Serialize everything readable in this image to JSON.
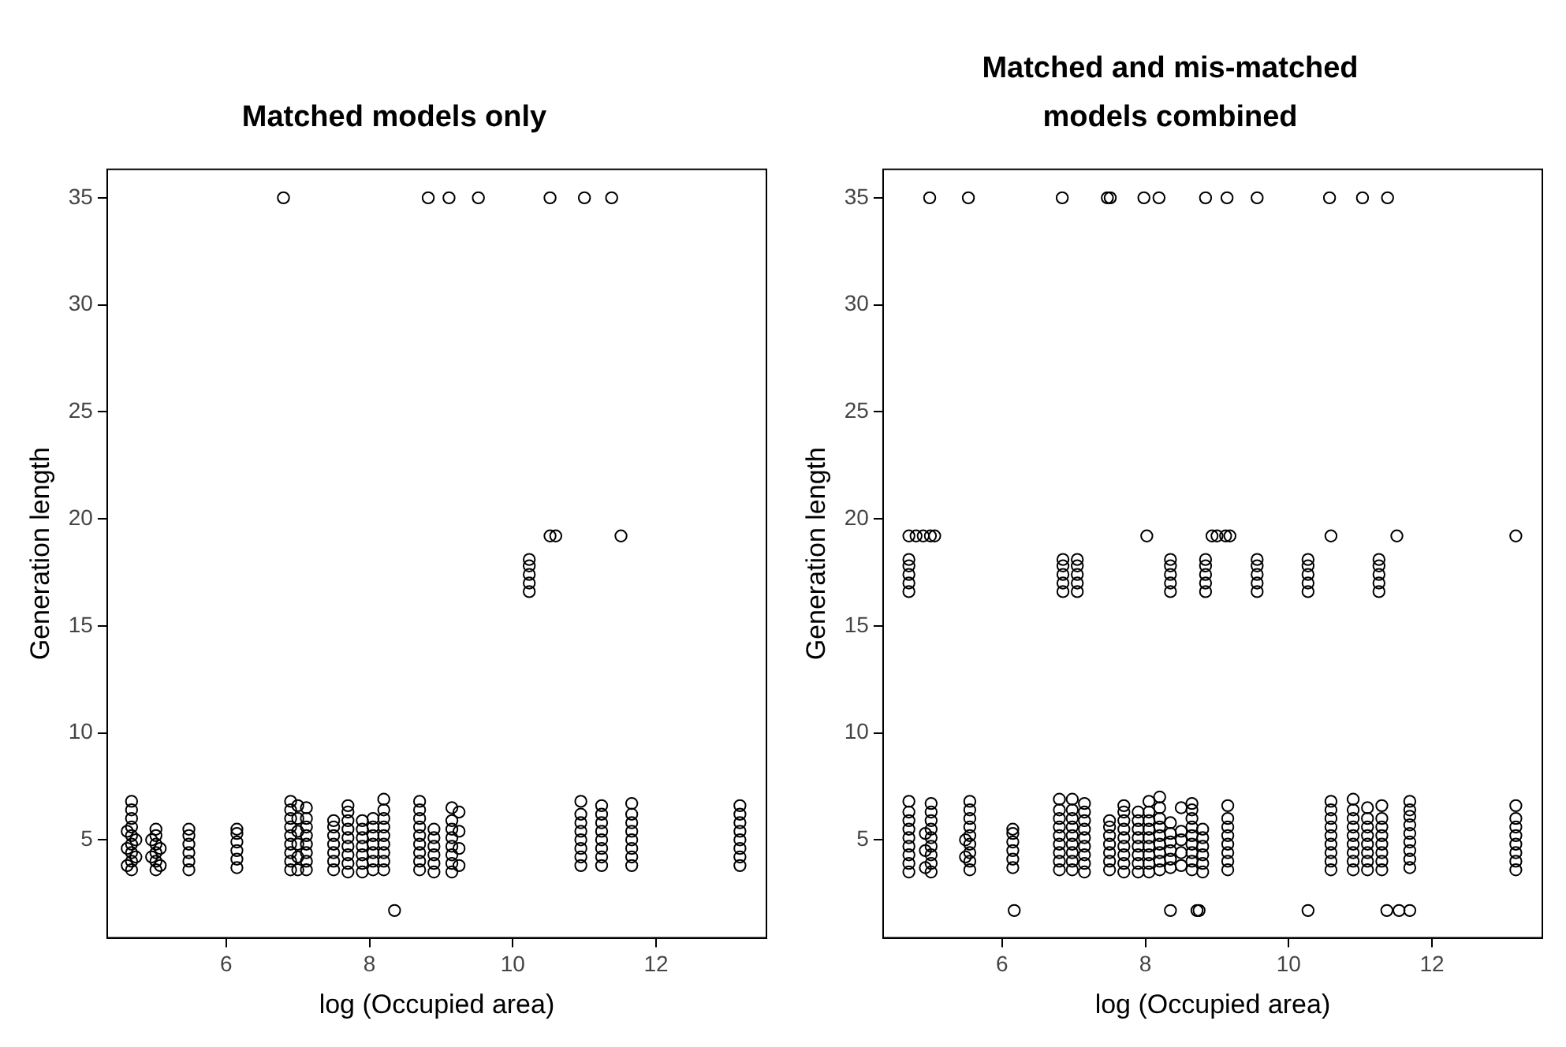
{
  "chart_data": [
    {
      "type": "scatter",
      "title": "Matched models only",
      "xlabel": "log (Occupied area)",
      "ylabel": "Generation length",
      "xlim": [
        4.34,
        13.54
      ],
      "ylim": [
        0.42,
        36.33
      ],
      "xticks": [
        6,
        8,
        10,
        12
      ],
      "yticks": [
        5,
        10,
        15,
        20,
        25,
        30,
        35
      ],
      "marker": "circle",
      "series": [
        {
          "color": "#000000",
          "x": [
            4.68,
            4.68,
            4.68,
            4.68,
            4.68,
            4.68,
            4.68,
            4.68,
            4.68,
            4.62,
            4.62,
            4.62,
            4.74,
            4.74
          ],
          "values": [
            3.6,
            4.0,
            4.4,
            4.8,
            5.2,
            5.6,
            6.0,
            6.4,
            6.8,
            3.8,
            4.6,
            5.4,
            4.2,
            5.0
          ]
        },
        {
          "color": "#000000",
          "x": [
            5.02,
            5.02,
            5.02,
            5.02,
            5.02,
            5.02,
            4.96,
            4.96,
            5.08,
            5.08
          ],
          "values": [
            3.6,
            4.0,
            4.4,
            4.8,
            5.2,
            5.5,
            4.2,
            5.0,
            3.8,
            4.6
          ]
        },
        {
          "color": "#000000",
          "x": [
            5.48,
            5.48,
            5.48,
            5.48,
            5.48,
            5.48,
            6.15,
            6.15,
            6.15,
            6.15,
            6.15,
            6.15
          ],
          "values": [
            3.6,
            4.0,
            4.4,
            4.8,
            5.2,
            5.5,
            3.7,
            4.1,
            4.5,
            4.9,
            5.3,
            5.5
          ]
        },
        {
          "color": "#000000",
          "x": [
            6.9,
            6.9,
            6.9,
            6.9,
            6.9,
            6.9,
            6.9,
            6.9,
            6.9,
            7.0,
            7.0,
            7.0,
            7.0,
            7.0,
            7.0,
            7.12,
            7.12,
            7.12,
            7.12,
            7.12,
            7.12,
            7.12,
            7.12
          ],
          "values": [
            3.6,
            4.0,
            4.4,
            4.8,
            5.2,
            5.6,
            6.0,
            6.4,
            6.8,
            3.6,
            4.2,
            4.8,
            5.4,
            6.0,
            6.6,
            3.6,
            4.0,
            4.4,
            4.8,
            5.2,
            5.6,
            6.0,
            6.5
          ]
        },
        {
          "color": "#000000",
          "x": [
            7.5,
            7.5,
            7.5,
            7.5,
            7.5,
            7.5,
            7.5,
            7.7,
            7.7,
            7.7,
            7.7,
            7.7,
            7.7,
            7.7,
            7.7,
            7.7,
            7.9,
            7.9,
            7.9,
            7.9,
            7.9,
            7.9,
            7.9
          ],
          "values": [
            3.6,
            4.0,
            4.4,
            4.8,
            5.2,
            5.6,
            5.9,
            3.5,
            3.9,
            4.3,
            4.7,
            5.1,
            5.5,
            5.9,
            6.3,
            6.6,
            3.5,
            3.9,
            4.3,
            4.7,
            5.1,
            5.5,
            5.9
          ]
        },
        {
          "color": "#000000",
          "x": [
            8.05,
            8.05,
            8.05,
            8.05,
            8.05,
            8.05,
            8.05,
            8.2,
            8.2,
            8.2,
            8.2,
            8.2,
            8.2,
            8.2,
            8.2,
            8.2
          ],
          "values": [
            3.6,
            4.0,
            4.4,
            4.8,
            5.2,
            5.6,
            6.0,
            3.6,
            4.0,
            4.4,
            4.8,
            5.2,
            5.6,
            6.0,
            6.4,
            6.9
          ]
        },
        {
          "color": "#000000",
          "x": [
            8.7,
            8.7,
            8.7,
            8.7,
            8.7,
            8.7,
            8.7,
            8.7,
            8.7,
            8.9,
            8.9,
            8.9,
            8.9,
            8.9,
            8.9
          ],
          "values": [
            3.6,
            4.0,
            4.4,
            4.8,
            5.2,
            5.6,
            6.0,
            6.4,
            6.8,
            3.5,
            3.9,
            4.3,
            4.7,
            5.1,
            5.5
          ]
        },
        {
          "color": "#000000",
          "x": [
            9.15,
            9.15,
            9.15,
            9.15,
            9.15,
            9.15,
            9.15,
            9.15,
            9.25,
            9.25,
            9.25,
            9.25
          ],
          "values": [
            3.5,
            3.9,
            4.3,
            4.7,
            5.1,
            5.5,
            5.9,
            6.5,
            3.8,
            4.6,
            5.4,
            6.3
          ]
        },
        {
          "color": "#000000",
          "x": [
            10.95,
            10.95,
            10.95,
            10.95,
            10.95,
            10.95,
            10.95,
            10.95,
            11.24,
            11.24,
            11.24,
            11.24,
            11.24,
            11.24,
            11.24,
            11.24
          ],
          "values": [
            3.8,
            4.2,
            4.6,
            5.0,
            5.4,
            5.8,
            6.2,
            6.8,
            3.8,
            4.2,
            4.6,
            5.0,
            5.4,
            5.8,
            6.2,
            6.6
          ]
        },
        {
          "color": "#000000",
          "x": [
            11.66,
            11.66,
            11.66,
            11.66,
            11.66,
            11.66,
            11.66,
            11.66,
            13.17,
            13.17,
            13.17,
            13.17,
            13.17,
            13.17,
            13.17,
            13.17
          ],
          "values": [
            3.8,
            4.2,
            4.6,
            5.0,
            5.4,
            5.8,
            6.2,
            6.7,
            3.8,
            4.2,
            4.6,
            5.0,
            5.4,
            5.8,
            6.2,
            6.6
          ]
        },
        {
          "color": "#000000",
          "x": [
            10.23,
            10.23,
            10.23,
            10.23,
            10.23,
            10.52,
            10.6,
            11.51,
            8.35
          ],
          "values": [
            16.6,
            17.0,
            17.4,
            17.8,
            18.1,
            19.2,
            19.2,
            19.2,
            1.7
          ]
        },
        {
          "color": "#000000",
          "x": [
            6.8,
            8.82,
            9.11,
            9.52,
            10.52,
            11.0,
            11.38
          ],
          "values": [
            35,
            35,
            35,
            35,
            35,
            35,
            35
          ]
        }
      ]
    },
    {
      "type": "scatter",
      "title": "Matched and mis-matched models combined",
      "xlabel": "log (Occupied area)",
      "ylabel": "Generation length",
      "xlim": [
        4.34,
        13.54
      ],
      "ylim": [
        0.42,
        36.33
      ],
      "xticks": [
        6,
        8,
        10,
        12
      ],
      "yticks": [
        5,
        10,
        15,
        20,
        25,
        30,
        35
      ],
      "marker": "circle",
      "series": [
        {
          "color": "#000000",
          "x": [
            4.7,
            4.7,
            4.7,
            4.7,
            4.7,
            4.7,
            4.7,
            4.7,
            4.7,
            5.01,
            5.01,
            5.01,
            5.01,
            5.01,
            5.01,
            5.01,
            5.01,
            5.01,
            4.93,
            4.93,
            4.93
          ],
          "values": [
            3.5,
            3.9,
            4.3,
            4.7,
            5.1,
            5.5,
            5.9,
            6.3,
            6.8,
            3.5,
            3.9,
            4.3,
            4.7,
            5.1,
            5.5,
            5.9,
            6.3,
            6.7,
            3.7,
            4.5,
            5.3
          ]
        },
        {
          "color": "#000000",
          "x": [
            5.55,
            5.55,
            5.55,
            5.55,
            5.55,
            5.55,
            5.55,
            5.55,
            5.55,
            5.49,
            5.49,
            6.15,
            6.15,
            6.15,
            6.15,
            6.15,
            6.15
          ],
          "values": [
            3.6,
            4.0,
            4.4,
            4.8,
            5.2,
            5.6,
            6.0,
            6.4,
            6.8,
            4.2,
            5.0,
            3.7,
            4.1,
            4.5,
            4.9,
            5.3,
            5.5
          ]
        },
        {
          "color": "#000000",
          "x": [
            6.8,
            6.8,
            6.8,
            6.8,
            6.8,
            6.8,
            6.8,
            6.8,
            6.8,
            6.98,
            6.98,
            6.98,
            6.98,
            6.98,
            6.98,
            6.98,
            6.98,
            6.98,
            7.15,
            7.15,
            7.15,
            7.15,
            7.15,
            7.15,
            7.15,
            7.15,
            7.15
          ],
          "values": [
            3.6,
            4.0,
            4.4,
            4.8,
            5.2,
            5.6,
            6.0,
            6.4,
            6.9,
            3.6,
            4.0,
            4.4,
            4.8,
            5.2,
            5.6,
            6.0,
            6.4,
            6.9,
            3.5,
            3.9,
            4.3,
            4.7,
            5.1,
            5.5,
            5.9,
            6.3,
            6.7
          ]
        },
        {
          "color": "#000000",
          "x": [
            7.5,
            7.5,
            7.5,
            7.5,
            7.5,
            7.5,
            7.5,
            7.7,
            7.7,
            7.7,
            7.7,
            7.7,
            7.7,
            7.7,
            7.7,
            7.7,
            7.9,
            7.9,
            7.9,
            7.9,
            7.9,
            7.9,
            7.9,
            7.9
          ],
          "values": [
            3.6,
            4.0,
            4.4,
            4.8,
            5.2,
            5.6,
            5.9,
            3.5,
            3.9,
            4.3,
            4.7,
            5.1,
            5.5,
            5.9,
            6.3,
            6.6,
            3.5,
            3.9,
            4.3,
            4.7,
            5.1,
            5.5,
            5.9,
            6.3
          ]
        },
        {
          "color": "#000000",
          "x": [
            8.05,
            8.05,
            8.05,
            8.05,
            8.05,
            8.05,
            8.05,
            8.05,
            8.05,
            8.2,
            8.2,
            8.2,
            8.2,
            8.2,
            8.2,
            8.2,
            8.2,
            8.2
          ],
          "values": [
            3.5,
            3.9,
            4.3,
            4.7,
            5.1,
            5.5,
            5.9,
            6.3,
            6.8,
            3.6,
            4.0,
            4.4,
            4.8,
            5.2,
            5.6,
            6.0,
            6.5,
            7.0
          ]
        },
        {
          "color": "#000000",
          "x": [
            8.35,
            8.35,
            8.35,
            8.35,
            8.35,
            8.35,
            8.5,
            8.5,
            8.5,
            8.5,
            8.5,
            8.65,
            8.65,
            8.65,
            8.65,
            8.65,
            8.65,
            8.65,
            8.65,
            8.65
          ],
          "values": [
            3.7,
            4.1,
            4.5,
            4.9,
            5.3,
            5.8,
            3.8,
            4.4,
            5.0,
            5.4,
            6.5,
            3.6,
            4.0,
            4.4,
            4.8,
            5.2,
            5.6,
            6.0,
            6.4,
            6.7
          ]
        },
        {
          "color": "#000000",
          "x": [
            8.8,
            8.8,
            8.8,
            8.8,
            8.8,
            8.8,
            9.15,
            9.15,
            9.15,
            9.15,
            9.15,
            9.15,
            9.15,
            9.15
          ],
          "values": [
            3.5,
            3.9,
            4.3,
            4.7,
            5.1,
            5.5,
            3.6,
            4.0,
            4.4,
            4.8,
            5.2,
            5.6,
            6.0,
            6.6
          ]
        },
        {
          "color": "#000000",
          "x": [
            10.59,
            10.59,
            10.59,
            10.59,
            10.59,
            10.59,
            10.59,
            10.59,
            10.59,
            10.9,
            10.9,
            10.9,
            10.9,
            10.9,
            10.9,
            10.9,
            10.9,
            10.9
          ],
          "values": [
            3.6,
            4.0,
            4.4,
            4.8,
            5.2,
            5.6,
            6.0,
            6.4,
            6.8,
            3.6,
            4.0,
            4.4,
            4.8,
            5.2,
            5.6,
            6.0,
            6.4,
            6.9
          ]
        },
        {
          "color": "#000000",
          "x": [
            11.1,
            11.1,
            11.1,
            11.1,
            11.1,
            11.1,
            11.1,
            11.1,
            11.3,
            11.3,
            11.3,
            11.3,
            11.3,
            11.3,
            11.3,
            11.3
          ],
          "values": [
            3.6,
            4.0,
            4.4,
            4.8,
            5.2,
            5.6,
            6.0,
            6.5,
            3.6,
            4.0,
            4.4,
            4.8,
            5.2,
            5.6,
            6.0,
            6.6
          ]
        },
        {
          "color": "#000000",
          "x": [
            11.69,
            11.69,
            11.69,
            11.69,
            11.69,
            11.69,
            11.69,
            11.69,
            11.69,
            13.17,
            13.17,
            13.17,
            13.17,
            13.17,
            13.17,
            13.17,
            13.17
          ],
          "values": [
            3.7,
            4.1,
            4.5,
            4.9,
            5.3,
            5.7,
            6.1,
            6.4,
            6.8,
            3.6,
            4.0,
            4.4,
            4.8,
            5.2,
            5.6,
            6.0,
            6.6
          ]
        },
        {
          "color": "#000000",
          "x": [
            4.7,
            4.7,
            4.7,
            4.7,
            4.7,
            6.85,
            6.85,
            6.85,
            6.85,
            6.85,
            7.05,
            7.05,
            7.05,
            7.05,
            7.05,
            8.35,
            8.35,
            8.35,
            8.35,
            8.35
          ],
          "values": [
            16.6,
            17.0,
            17.4,
            17.8,
            18.1,
            16.6,
            17.0,
            17.4,
            17.8,
            18.1,
            16.6,
            17.0,
            17.4,
            17.8,
            18.1,
            16.6,
            17.0,
            17.4,
            17.8,
            18.1
          ]
        },
        {
          "color": "#000000",
          "x": [
            8.84,
            8.84,
            8.84,
            8.84,
            8.84,
            9.56,
            9.56,
            9.56,
            9.56,
            9.56,
            10.27,
            10.27,
            10.27,
            10.27,
            10.27,
            11.26,
            11.26,
            11.26,
            11.26,
            11.26
          ],
          "values": [
            16.6,
            17.0,
            17.4,
            17.8,
            18.1,
            16.6,
            17.0,
            17.4,
            17.8,
            18.1,
            16.6,
            17.0,
            17.4,
            17.8,
            18.1,
            16.6,
            17.0,
            17.4,
            17.8,
            18.1
          ]
        },
        {
          "color": "#000000",
          "x": [
            4.7,
            4.8,
            4.9,
            5.0,
            5.06,
            8.02,
            8.93,
            9.0,
            9.12,
            9.18,
            10.59,
            11.51,
            13.17
          ],
          "values": [
            19.2,
            19.2,
            19.2,
            19.2,
            19.2,
            19.2,
            19.2,
            19.2,
            19.2,
            19.2,
            19.2,
            19.2,
            19.2
          ]
        },
        {
          "color": "#000000",
          "x": [
            4.99,
            5.53,
            6.84,
            7.47,
            7.51,
            7.98,
            8.19,
            8.84,
            9.14,
            9.56,
            10.57,
            11.03,
            11.38
          ],
          "values": [
            35,
            35,
            35,
            35,
            35,
            35,
            35,
            35,
            35,
            35,
            35,
            35,
            35
          ]
        },
        {
          "color": "#000000",
          "x": [
            6.17,
            8.35,
            8.72,
            8.75,
            10.27,
            11.37,
            11.54,
            11.69
          ],
          "values": [
            1.7,
            1.7,
            1.7,
            1.7,
            1.7,
            1.7,
            1.7,
            1.7
          ]
        }
      ]
    }
  ]
}
